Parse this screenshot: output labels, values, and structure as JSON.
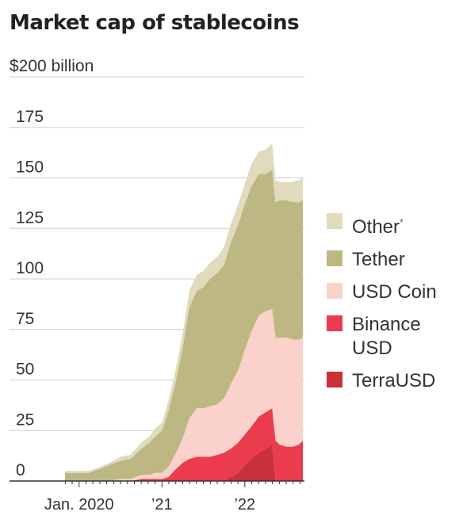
{
  "title": "Market cap of stablecoins",
  "chart_data": {
    "type": "area",
    "stacked": true,
    "title": "Market cap of stablecoins",
    "y_unit_label": "$200 billion",
    "ylim": [
      0,
      200
    ],
    "y_ticks": [
      "0",
      "25",
      "50",
      "75",
      "100",
      "125",
      "150",
      "175"
    ],
    "x_ticks": [
      {
        "label": "Jan. 2020",
        "x": 2020.0
      },
      {
        "label": "’21",
        "x": 2021.0
      },
      {
        "label": "’22",
        "x": 2022.0
      }
    ],
    "xlim": [
      2019.83,
      2022.7
    ],
    "grid": true,
    "legend_placement": "right",
    "x": [
      2019.83,
      2020.0,
      2020.12,
      2020.25,
      2020.37,
      2020.5,
      2020.62,
      2020.75,
      2020.85,
      2020.92,
      2021.0,
      2021.08,
      2021.17,
      2021.25,
      2021.33,
      2021.42,
      2021.5,
      2021.58,
      2021.67,
      2021.75,
      2021.83,
      2021.92,
      2022.0,
      2022.08,
      2022.17,
      2022.25,
      2022.33,
      2022.37,
      2022.42,
      2022.5,
      2022.58,
      2022.65,
      2022.7
    ],
    "series": [
      {
        "name": "TerraUSD",
        "color": "#c8303a",
        "values": [
          0,
          0,
          0,
          0,
          0,
          0,
          0,
          0,
          0,
          0,
          0,
          0,
          0,
          0,
          0,
          0,
          0,
          0,
          0,
          0,
          2,
          4,
          8,
          11,
          14,
          16,
          18,
          0,
          0,
          0,
          0,
          0,
          0
        ]
      },
      {
        "name": "Binance USD",
        "color": "#ea3c4c",
        "values": [
          0,
          0,
          0,
          0,
          0,
          0,
          0,
          1,
          1,
          1,
          1,
          2,
          6,
          9,
          11,
          12,
          12,
          12,
          13,
          14,
          14,
          15,
          15,
          16,
          18,
          18,
          18,
          20,
          18,
          17,
          17,
          18,
          20
        ]
      },
      {
        "name": "USD Coin",
        "color": "#fbd1cb",
        "values": [
          0,
          0,
          0,
          0,
          0,
          1,
          1,
          2,
          2,
          3,
          3,
          5,
          8,
          12,
          20,
          24,
          24,
          25,
          25,
          27,
          32,
          36,
          42,
          47,
          50,
          50,
          49,
          51,
          53,
          54,
          53,
          52,
          51
        ]
      },
      {
        "name": "Tether",
        "color": "#bdb783",
        "values": [
          4,
          4,
          4,
          6,
          8,
          9,
          10,
          13,
          16,
          18,
          21,
          28,
          36,
          45,
          55,
          58,
          60,
          63,
          65,
          66,
          70,
          72,
          72,
          72,
          70,
          68,
          69,
          67,
          68,
          68,
          68,
          68,
          68
        ]
      },
      {
        "name": "Other*",
        "color": "#e0dbbd",
        "values": [
          1,
          1,
          1,
          1,
          1,
          2,
          2,
          3,
          3,
          4,
          4,
          5,
          6,
          7,
          8,
          8,
          8,
          8,
          8,
          9,
          9,
          10,
          10,
          11,
          11,
          12,
          13,
          11,
          9,
          9,
          10,
          11,
          11
        ]
      }
    ]
  },
  "legend": [
    {
      "label": "Other",
      "suffix": "*",
      "color": "#e0dbbd"
    },
    {
      "label": "Tether",
      "suffix": "",
      "color": "#bdb783"
    },
    {
      "label": "USD Coin",
      "suffix": "",
      "color": "#fbd1cb"
    },
    {
      "label": "Binance USD",
      "suffix": "",
      "color": "#ea3c4c"
    },
    {
      "label": "TerraUSD",
      "suffix": "",
      "color": "#c8303a"
    }
  ]
}
